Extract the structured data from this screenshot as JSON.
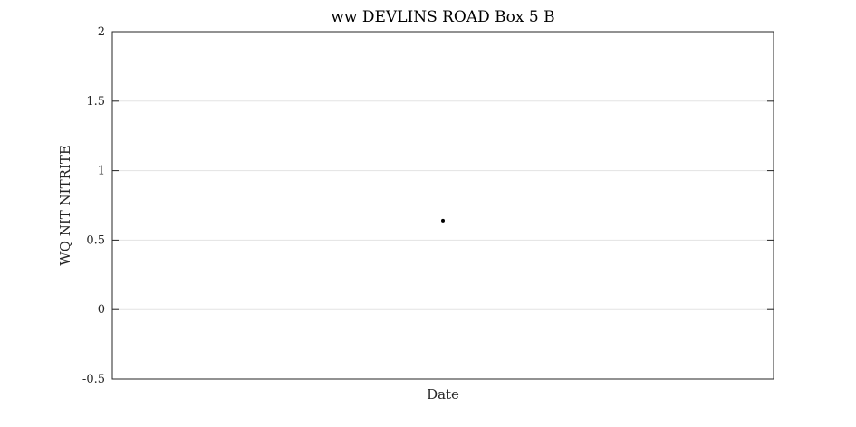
{
  "chart_data": {
    "type": "scatter",
    "title": "ww DEVLINS ROAD Box 5 B",
    "xlabel": "Date",
    "ylabel": "WQ NIT NITRITE",
    "ylim": [
      -0.5,
      2
    ],
    "yticks": [
      -0.5,
      0,
      0.5,
      1,
      1.5,
      2
    ],
    "ytick_labels": [
      "-0.5",
      "0",
      "0.5",
      "1",
      "1.5",
      "2"
    ],
    "xticks": [],
    "grid": "horizontal",
    "legend": "none",
    "series": [
      {
        "x": [
          0.5
        ],
        "values": [
          0.64
        ],
        "color": "#000000"
      }
    ]
  }
}
